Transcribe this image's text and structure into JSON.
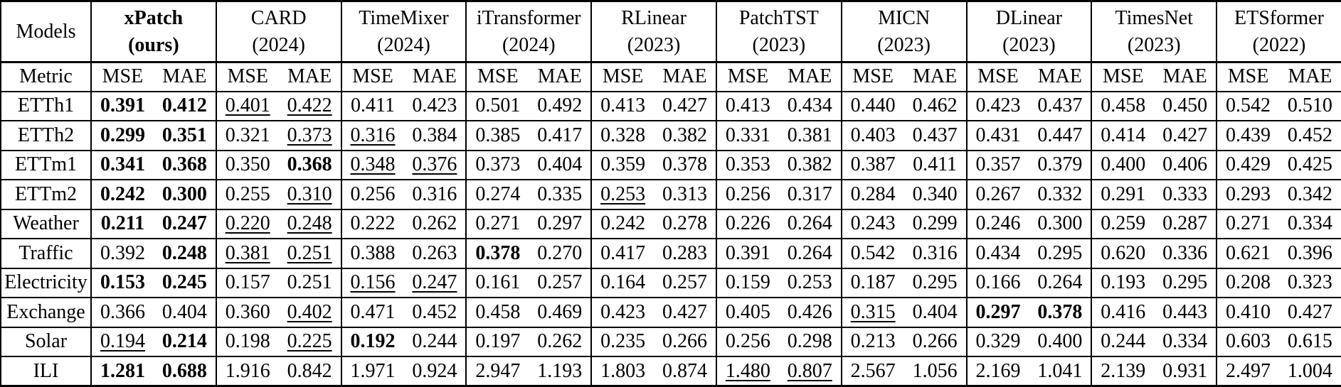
{
  "table": {
    "corner_label": "Models",
    "metric_label": "Metric",
    "metric_columns": [
      "MSE",
      "MAE"
    ],
    "models": [
      {
        "name": "xPatch",
        "year": "(ours)",
        "bold": true
      },
      {
        "name": "CARD",
        "year": "(2024)",
        "bold": false
      },
      {
        "name": "TimeMixer",
        "year": "(2024)",
        "bold": false
      },
      {
        "name": "iTransformer",
        "year": "(2024)",
        "bold": false
      },
      {
        "name": "RLinear",
        "year": "(2023)",
        "bold": false
      },
      {
        "name": "PatchTST",
        "year": "(2023)",
        "bold": false
      },
      {
        "name": "MICN",
        "year": "(2023)",
        "bold": false
      },
      {
        "name": "DLinear",
        "year": "(2023)",
        "bold": false
      },
      {
        "name": "TimesNet",
        "year": "(2023)",
        "bold": false
      },
      {
        "name": "ETSformer",
        "year": "(2022)",
        "bold": false
      }
    ],
    "emphasis_legend": {
      "b": "bold-best",
      "u": "underline-second-best",
      "n": "normal"
    },
    "rows": [
      {
        "dataset": "ETTh1",
        "values": [
          [
            "0.391",
            "b"
          ],
          [
            "0.412",
            "b"
          ],
          [
            "0.401",
            "u"
          ],
          [
            "0.422",
            "u"
          ],
          [
            "0.411",
            "n"
          ],
          [
            "0.423",
            "n"
          ],
          [
            "0.501",
            "n"
          ],
          [
            "0.492",
            "n"
          ],
          [
            "0.413",
            "n"
          ],
          [
            "0.427",
            "n"
          ],
          [
            "0.413",
            "n"
          ],
          [
            "0.434",
            "n"
          ],
          [
            "0.440",
            "n"
          ],
          [
            "0.462",
            "n"
          ],
          [
            "0.423",
            "n"
          ],
          [
            "0.437",
            "n"
          ],
          [
            "0.458",
            "n"
          ],
          [
            "0.450",
            "n"
          ],
          [
            "0.542",
            "n"
          ],
          [
            "0.510",
            "n"
          ]
        ]
      },
      {
        "dataset": "ETTh2",
        "values": [
          [
            "0.299",
            "b"
          ],
          [
            "0.351",
            "b"
          ],
          [
            "0.321",
            "n"
          ],
          [
            "0.373",
            "u"
          ],
          [
            "0.316",
            "u"
          ],
          [
            "0.384",
            "n"
          ],
          [
            "0.385",
            "n"
          ],
          [
            "0.417",
            "n"
          ],
          [
            "0.328",
            "n"
          ],
          [
            "0.382",
            "n"
          ],
          [
            "0.331",
            "n"
          ],
          [
            "0.381",
            "n"
          ],
          [
            "0.403",
            "n"
          ],
          [
            "0.437",
            "n"
          ],
          [
            "0.431",
            "n"
          ],
          [
            "0.447",
            "n"
          ],
          [
            "0.414",
            "n"
          ],
          [
            "0.427",
            "n"
          ],
          [
            "0.439",
            "n"
          ],
          [
            "0.452",
            "n"
          ]
        ]
      },
      {
        "dataset": "ETTm1",
        "values": [
          [
            "0.341",
            "b"
          ],
          [
            "0.368",
            "b"
          ],
          [
            "0.350",
            "n"
          ],
          [
            "0.368",
            "b"
          ],
          [
            "0.348",
            "u"
          ],
          [
            "0.376",
            "u"
          ],
          [
            "0.373",
            "n"
          ],
          [
            "0.404",
            "n"
          ],
          [
            "0.359",
            "n"
          ],
          [
            "0.378",
            "n"
          ],
          [
            "0.353",
            "n"
          ],
          [
            "0.382",
            "n"
          ],
          [
            "0.387",
            "n"
          ],
          [
            "0.411",
            "n"
          ],
          [
            "0.357",
            "n"
          ],
          [
            "0.379",
            "n"
          ],
          [
            "0.400",
            "n"
          ],
          [
            "0.406",
            "n"
          ],
          [
            "0.429",
            "n"
          ],
          [
            "0.425",
            "n"
          ]
        ]
      },
      {
        "dataset": "ETTm2",
        "values": [
          [
            "0.242",
            "b"
          ],
          [
            "0.300",
            "b"
          ],
          [
            "0.255",
            "n"
          ],
          [
            "0.310",
            "u"
          ],
          [
            "0.256",
            "n"
          ],
          [
            "0.316",
            "n"
          ],
          [
            "0.274",
            "n"
          ],
          [
            "0.335",
            "n"
          ],
          [
            "0.253",
            "u"
          ],
          [
            "0.313",
            "n"
          ],
          [
            "0.256",
            "n"
          ],
          [
            "0.317",
            "n"
          ],
          [
            "0.284",
            "n"
          ],
          [
            "0.340",
            "n"
          ],
          [
            "0.267",
            "n"
          ],
          [
            "0.332",
            "n"
          ],
          [
            "0.291",
            "n"
          ],
          [
            "0.333",
            "n"
          ],
          [
            "0.293",
            "n"
          ],
          [
            "0.342",
            "n"
          ]
        ]
      },
      {
        "dataset": "Weather",
        "values": [
          [
            "0.211",
            "b"
          ],
          [
            "0.247",
            "b"
          ],
          [
            "0.220",
            "u"
          ],
          [
            "0.248",
            "u"
          ],
          [
            "0.222",
            "n"
          ],
          [
            "0.262",
            "n"
          ],
          [
            "0.271",
            "n"
          ],
          [
            "0.297",
            "n"
          ],
          [
            "0.242",
            "n"
          ],
          [
            "0.278",
            "n"
          ],
          [
            "0.226",
            "n"
          ],
          [
            "0.264",
            "n"
          ],
          [
            "0.243",
            "n"
          ],
          [
            "0.299",
            "n"
          ],
          [
            "0.246",
            "n"
          ],
          [
            "0.300",
            "n"
          ],
          [
            "0.259",
            "n"
          ],
          [
            "0.287",
            "n"
          ],
          [
            "0.271",
            "n"
          ],
          [
            "0.334",
            "n"
          ]
        ]
      },
      {
        "dataset": "Traffic",
        "values": [
          [
            "0.392",
            "n"
          ],
          [
            "0.248",
            "b"
          ],
          [
            "0.381",
            "u"
          ],
          [
            "0.251",
            "u"
          ],
          [
            "0.388",
            "n"
          ],
          [
            "0.263",
            "n"
          ],
          [
            "0.378",
            "b"
          ],
          [
            "0.270",
            "n"
          ],
          [
            "0.417",
            "n"
          ],
          [
            "0.283",
            "n"
          ],
          [
            "0.391",
            "n"
          ],
          [
            "0.264",
            "n"
          ],
          [
            "0.542",
            "n"
          ],
          [
            "0.316",
            "n"
          ],
          [
            "0.434",
            "n"
          ],
          [
            "0.295",
            "n"
          ],
          [
            "0.620",
            "n"
          ],
          [
            "0.336",
            "n"
          ],
          [
            "0.621",
            "n"
          ],
          [
            "0.396",
            "n"
          ]
        ]
      },
      {
        "dataset": "Electricity",
        "values": [
          [
            "0.153",
            "b"
          ],
          [
            "0.245",
            "b"
          ],
          [
            "0.157",
            "n"
          ],
          [
            "0.251",
            "n"
          ],
          [
            "0.156",
            "u"
          ],
          [
            "0.247",
            "u"
          ],
          [
            "0.161",
            "n"
          ],
          [
            "0.257",
            "n"
          ],
          [
            "0.164",
            "n"
          ],
          [
            "0.257",
            "n"
          ],
          [
            "0.159",
            "n"
          ],
          [
            "0.253",
            "n"
          ],
          [
            "0.187",
            "n"
          ],
          [
            "0.295",
            "n"
          ],
          [
            "0.166",
            "n"
          ],
          [
            "0.264",
            "n"
          ],
          [
            "0.193",
            "n"
          ],
          [
            "0.295",
            "n"
          ],
          [
            "0.208",
            "n"
          ],
          [
            "0.323",
            "n"
          ]
        ]
      },
      {
        "dataset": "Exchange",
        "values": [
          [
            "0.366",
            "n"
          ],
          [
            "0.404",
            "n"
          ],
          [
            "0.360",
            "n"
          ],
          [
            "0.402",
            "u"
          ],
          [
            "0.471",
            "n"
          ],
          [
            "0.452",
            "n"
          ],
          [
            "0.458",
            "n"
          ],
          [
            "0.469",
            "n"
          ],
          [
            "0.423",
            "n"
          ],
          [
            "0.427",
            "n"
          ],
          [
            "0.405",
            "n"
          ],
          [
            "0.426",
            "n"
          ],
          [
            "0.315",
            "u"
          ],
          [
            "0.404",
            "n"
          ],
          [
            "0.297",
            "b"
          ],
          [
            "0.378",
            "b"
          ],
          [
            "0.416",
            "n"
          ],
          [
            "0.443",
            "n"
          ],
          [
            "0.410",
            "n"
          ],
          [
            "0.427",
            "n"
          ]
        ]
      },
      {
        "dataset": "Solar",
        "values": [
          [
            "0.194",
            "u"
          ],
          [
            "0.214",
            "b"
          ],
          [
            "0.198",
            "n"
          ],
          [
            "0.225",
            "u"
          ],
          [
            "0.192",
            "b"
          ],
          [
            "0.244",
            "n"
          ],
          [
            "0.197",
            "n"
          ],
          [
            "0.262",
            "n"
          ],
          [
            "0.235",
            "n"
          ],
          [
            "0.266",
            "n"
          ],
          [
            "0.256",
            "n"
          ],
          [
            "0.298",
            "n"
          ],
          [
            "0.213",
            "n"
          ],
          [
            "0.266",
            "n"
          ],
          [
            "0.329",
            "n"
          ],
          [
            "0.400",
            "n"
          ],
          [
            "0.244",
            "n"
          ],
          [
            "0.334",
            "n"
          ],
          [
            "0.603",
            "n"
          ],
          [
            "0.615",
            "n"
          ]
        ]
      },
      {
        "dataset": "ILI",
        "values": [
          [
            "1.281",
            "b"
          ],
          [
            "0.688",
            "b"
          ],
          [
            "1.916",
            "n"
          ],
          [
            "0.842",
            "n"
          ],
          [
            "1.971",
            "n"
          ],
          [
            "0.924",
            "n"
          ],
          [
            "2.947",
            "n"
          ],
          [
            "1.193",
            "n"
          ],
          [
            "1.803",
            "n"
          ],
          [
            "0.874",
            "n"
          ],
          [
            "1.480",
            "u"
          ],
          [
            "0.807",
            "u"
          ],
          [
            "2.567",
            "n"
          ],
          [
            "1.056",
            "n"
          ],
          [
            "2.169",
            "n"
          ],
          [
            "1.041",
            "n"
          ],
          [
            "2.139",
            "n"
          ],
          [
            "0.931",
            "n"
          ],
          [
            "2.497",
            "n"
          ],
          [
            "1.004",
            "n"
          ]
        ]
      }
    ]
  }
}
